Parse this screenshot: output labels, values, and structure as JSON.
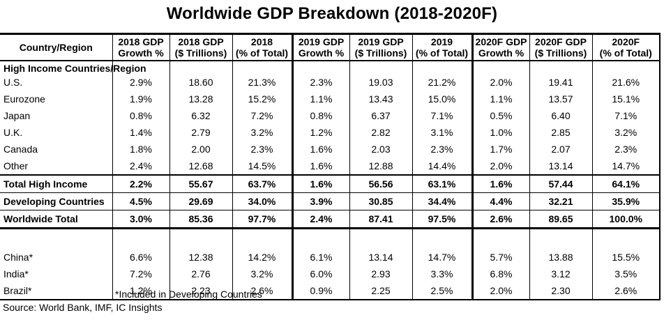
{
  "title": "Worldwide GDP Breakdown (2018-2020F)",
  "headers": [
    [
      "Country/Region",
      ""
    ],
    [
      "2018 GDP",
      "Growth %"
    ],
    [
      "2018 GDP",
      "($ Trillions)"
    ],
    [
      "2018",
      "(% of Total)"
    ],
    [
      "2019 GDP",
      "Growth %"
    ],
    [
      "2019 GDP",
      "($ Trillions)"
    ],
    [
      "2019",
      "(% of Total)"
    ],
    [
      "2020F GDP",
      "Growth %"
    ],
    [
      "2020F GDP",
      "($ Trillions)"
    ],
    [
      "2020F",
      "(% of Total)"
    ]
  ],
  "section_label": "High Income Countries/Region",
  "high_income_rows": [
    [
      "U.S.",
      "2.9%",
      "18.60",
      "21.3%",
      "2.3%",
      "19.03",
      "21.2%",
      "2.0%",
      "19.41",
      "21.6%"
    ],
    [
      "Eurozone",
      "1.9%",
      "13.28",
      "15.2%",
      "1.1%",
      "13.43",
      "15.0%",
      "1.1%",
      "13.57",
      "15.1%"
    ],
    [
      "Japan",
      "0.8%",
      "6.32",
      "7.2%",
      "0.8%",
      "6.37",
      "7.1%",
      "0.5%",
      "6.40",
      "7.1%"
    ],
    [
      "U.K.",
      "1.4%",
      "2.79",
      "3.2%",
      "1.2%",
      "2.82",
      "3.1%",
      "1.0%",
      "2.85",
      "3.2%"
    ],
    [
      "Canada",
      "1.8%",
      "2.00",
      "2.3%",
      "1.6%",
      "2.03",
      "2.3%",
      "1.7%",
      "2.07",
      "2.3%"
    ],
    [
      "Other",
      "2.4%",
      "12.68",
      "14.5%",
      "1.6%",
      "12.88",
      "14.4%",
      "2.0%",
      "13.14",
      "14.7%"
    ]
  ],
  "total_high_income": [
    "Total High Income",
    "2.2%",
    "55.67",
    "63.7%",
    "1.6%",
    "56.56",
    "63.1%",
    "1.6%",
    "57.44",
    "64.1%"
  ],
  "developing": [
    "Developing Countries",
    "4.5%",
    "29.69",
    "34.0%",
    "3.9%",
    "30.85",
    "34.4%",
    "4.4%",
    "32.21",
    "35.9%"
  ],
  "worldwide_total": [
    "Worldwide Total",
    "3.0%",
    "85.36",
    "97.7%",
    "2.4%",
    "87.41",
    "97.5%",
    "2.6%",
    "89.65",
    "100.0%"
  ],
  "developing_detail_rows": [
    [
      "China*",
      "6.6%",
      "12.38",
      "14.2%",
      "6.1%",
      "13.14",
      "14.7%",
      "5.7%",
      "13.88",
      "15.5%"
    ],
    [
      "India*",
      "7.2%",
      "2.76",
      "3.2%",
      "6.0%",
      "2.93",
      "3.3%",
      "6.8%",
      "3.12",
      "3.5%"
    ],
    [
      "Brazil*",
      "1.2%",
      "2.23",
      "2.6%",
      "0.9%",
      "2.25",
      "2.5%",
      "2.0%",
      "2.30",
      "2.6%"
    ]
  ],
  "footnote": "*Included in Developing Countries",
  "source": "Source: World Bank, IMF, IC Insights"
}
